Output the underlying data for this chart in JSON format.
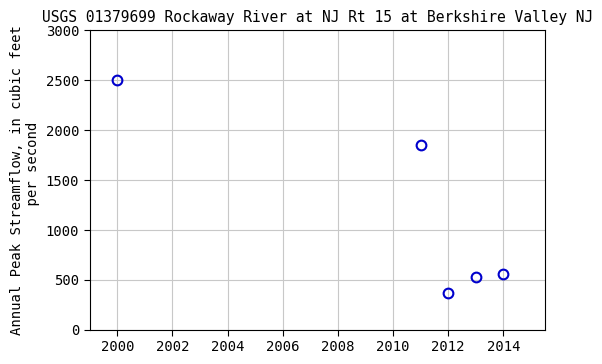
{
  "title": "USGS 01379699 Rockaway River at NJ Rt 15 at Berkshire Valley NJ",
  "ylabel_line1": "Annual Peak Streamflow, in cubic feet",
  "ylabel_line2": "    per second",
  "x_data": [
    2000,
    2011,
    2012,
    2013,
    2014
  ],
  "y_data": [
    2500,
    1850,
    370,
    530,
    560
  ],
  "xlim": [
    1999,
    2015.5
  ],
  "ylim": [
    0,
    3000
  ],
  "xticks": [
    2000,
    2002,
    2004,
    2006,
    2008,
    2010,
    2012,
    2014
  ],
  "yticks": [
    0,
    500,
    1000,
    1500,
    2000,
    2500,
    3000
  ],
  "marker_color": "#0000cc",
  "marker_size": 7,
  "marker_style": "o",
  "grid_color": "#c8c8c8",
  "bg_color": "#ffffff",
  "title_fontsize": 10.5,
  "label_fontsize": 10,
  "tick_fontsize": 10,
  "font_family": "DejaVu Sans Mono"
}
